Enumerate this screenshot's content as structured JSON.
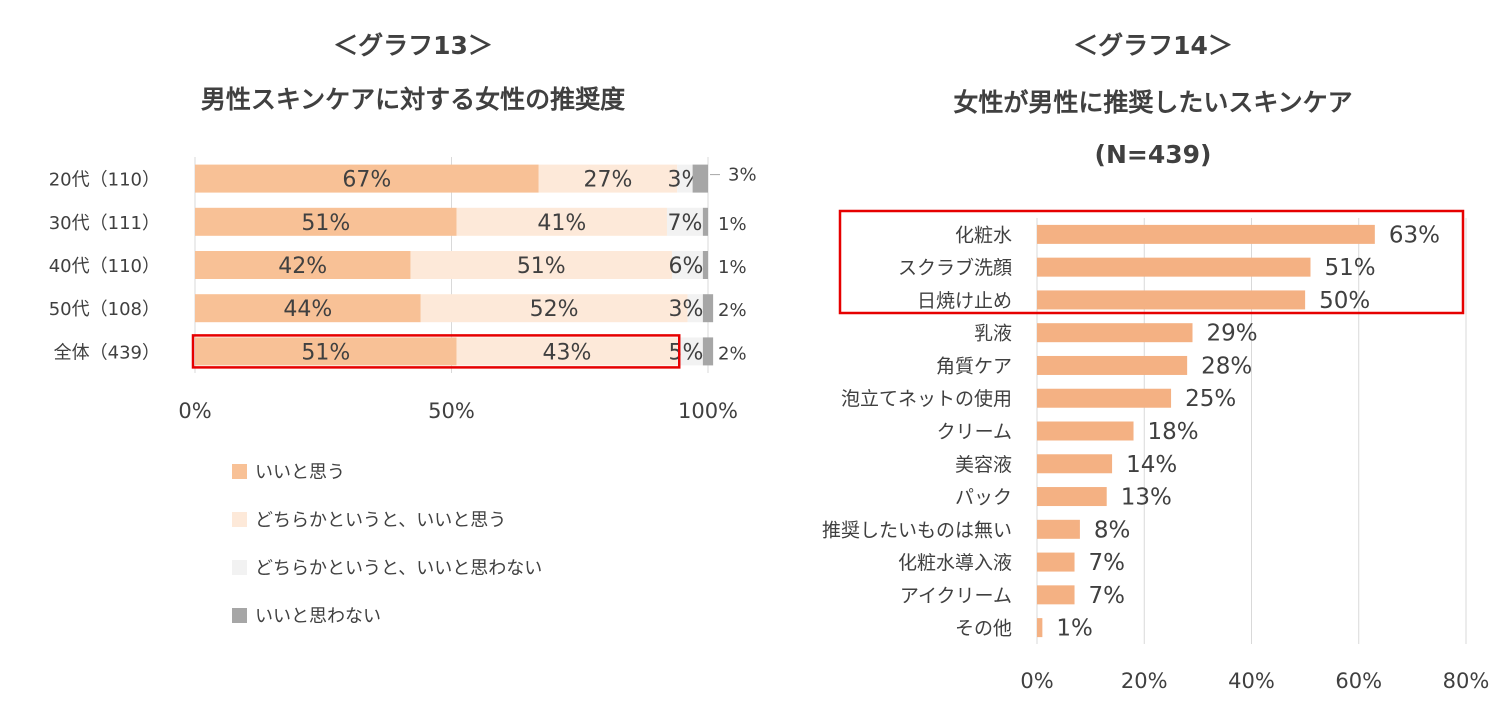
{
  "chart_data": [
    {
      "type": "bar",
      "orientation": "horizontal",
      "stacked": "percent",
      "title_tag": "＜グラフ13＞",
      "title": "男性スキンケアに対する女性の推奨度",
      "categories": [
        "20代（110）",
        "30代（111）",
        "40代（110）",
        "50代（108）",
        "全体（439）"
      ],
      "series": [
        {
          "name": "いいと思う",
          "color": "#F8C196",
          "values": [
            67,
            51,
            42,
            44,
            51
          ],
          "labels": [
            "67%",
            "51%",
            "42%",
            "44%",
            "51%"
          ]
        },
        {
          "name": "どちらかというと、いいと思う",
          "color": "#FDE9D9",
          "values": [
            27,
            41,
            51,
            52,
            43
          ],
          "labels": [
            "27%",
            "41%",
            "51%",
            "52%",
            "43%"
          ]
        },
        {
          "name": "どちらかというと、いいと思わない",
          "color": "#F2F2F2",
          "values": [
            3,
            7,
            6,
            3,
            5
          ],
          "labels": [
            "3%",
            "7%",
            "6%",
            "3%",
            "5%"
          ]
        },
        {
          "name": "いいと思わない",
          "color": "#A6A6A6",
          "values": [
            3,
            1,
            1,
            2,
            2
          ],
          "labels": [
            "3%",
            "1%",
            "1%",
            "2%",
            "2%"
          ]
        }
      ],
      "xlim": [
        0,
        100
      ],
      "xticks": [
        "0%",
        "50%",
        "100%"
      ],
      "grid": true,
      "legend_position": "bottom",
      "highlighted_category": "全体（439）",
      "highlight_color": "#E60000"
    },
    {
      "type": "bar",
      "orientation": "horizontal",
      "title_tag": "＜グラフ14＞",
      "title": "女性が男性に推奨したいスキンケア",
      "subtitle": "(N=439)",
      "categories": [
        "化粧水",
        "スクラブ洗顔",
        "日焼け止め",
        "乳液",
        "角質ケア",
        "泡立てネットの使用",
        "クリーム",
        "美容液",
        "パック",
        "推奨したいものは無い",
        "化粧水導入液",
        "アイクリーム",
        "その他"
      ],
      "values": [
        63,
        51,
        50,
        29,
        28,
        25,
        18,
        14,
        13,
        8,
        7,
        7,
        1
      ],
      "labels": [
        "63%",
        "51%",
        "50%",
        "29%",
        "28%",
        "25%",
        "18%",
        "14%",
        "13%",
        "8%",
        "7%",
        "7%",
        "1%"
      ],
      "bar_color": "#F4B183",
      "xlim": [
        0,
        80
      ],
      "xticks": [
        "0%",
        "20%",
        "40%",
        "60%",
        "80%"
      ],
      "grid": true,
      "highlighted_categories": [
        "化粧水",
        "スクラブ洗顔",
        "日焼け止め"
      ],
      "highlight_color": "#E60000"
    }
  ]
}
